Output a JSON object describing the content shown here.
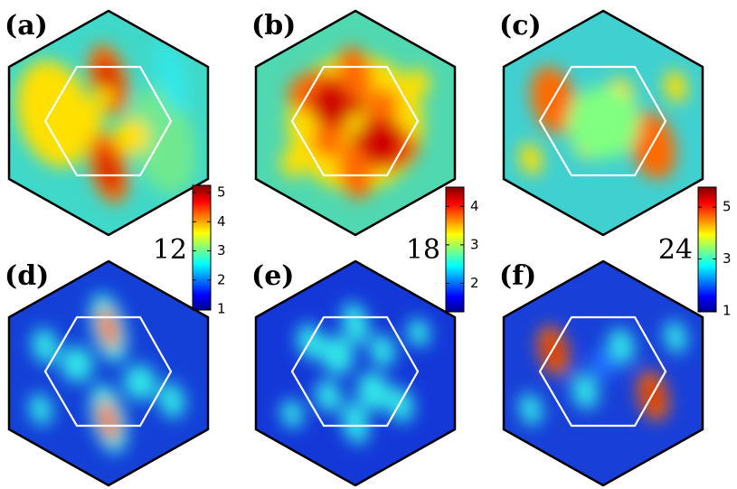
{
  "panels": [
    {
      "label": "(a)"
    },
    {
      "label": "(b)"
    },
    {
      "label": "(c)"
    },
    {
      "label": "(d)"
    },
    {
      "label": "(e)"
    },
    {
      "label": "(f)"
    }
  ],
  "colorbars": [
    {
      "label": "12",
      "ylim": [
        0.97,
        5.25
      ],
      "yticks": [
        1,
        2,
        3,
        4,
        5
      ]
    },
    {
      "label": "18",
      "ylim": [
        1.26,
        4.5
      ],
      "yticks": [
        2,
        3,
        4
      ]
    },
    {
      "label": "24",
      "ylim": [
        0.96,
        5.77
      ],
      "yticks": [
        1,
        3,
        5
      ]
    }
  ]
}
